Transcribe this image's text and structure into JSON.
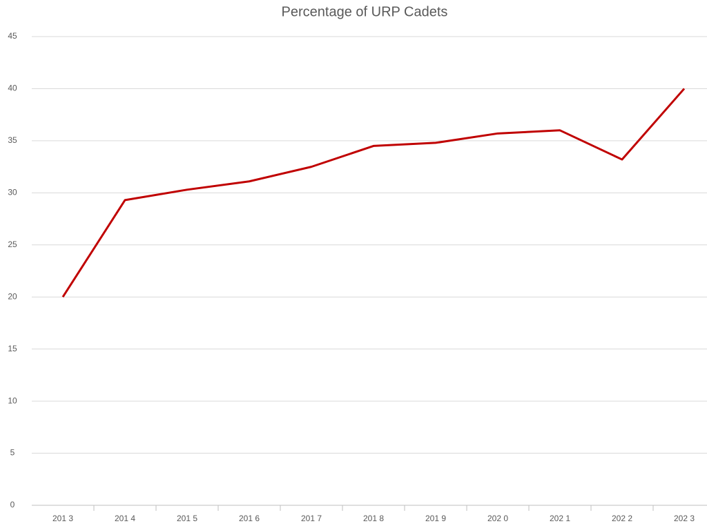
{
  "chart_data": {
    "type": "line",
    "title": "Percentage of URP Cadets",
    "categories": [
      "201 3",
      "201 4",
      "201 5",
      "201 6",
      "201 7",
      "201 8",
      "201 9",
      "202 0",
      "202 1",
      "202 2",
      "202 3"
    ],
    "series": [
      {
        "name": "Percentage of URP Cadets",
        "color": "#c00000",
        "values": [
          20,
          29.3,
          30.3,
          31.1,
          32.5,
          34.5,
          34.8,
          35.7,
          36,
          33.2,
          40
        ]
      }
    ],
    "ylim": [
      0,
      45
    ],
    "yticks": [
      0,
      5,
      10,
      15,
      20,
      25,
      30,
      35,
      40,
      45
    ],
    "grid": true
  }
}
